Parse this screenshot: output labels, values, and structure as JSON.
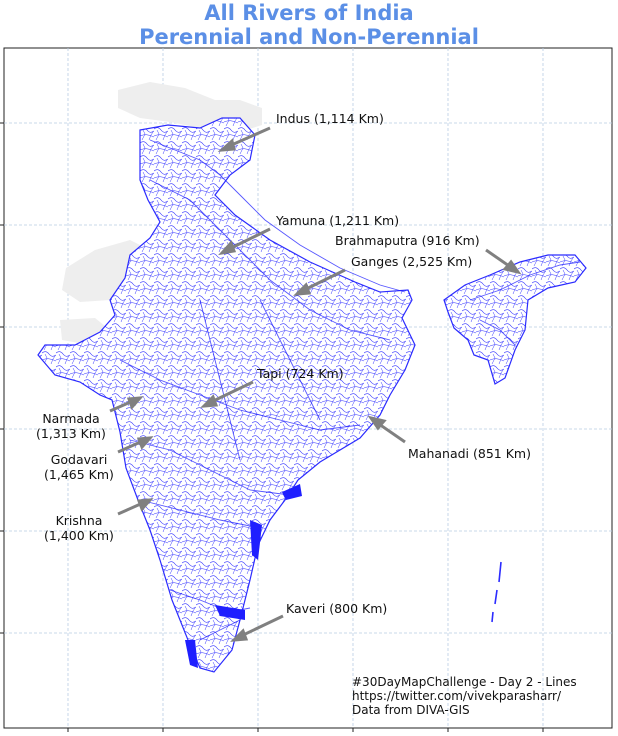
{
  "title_line1": "All Rivers of India",
  "title_line2": "Perennial and Non-Perennial",
  "colors": {
    "title": "#5b8fe6",
    "river": "#2b2bff",
    "land": "#ffffff",
    "neighbor": "#eeeeee",
    "arrow": "#808080",
    "grid": "#b9cde3"
  },
  "rivers": [
    {
      "id": "indus",
      "label": "Indus (1,114 Km)"
    },
    {
      "id": "yamuna",
      "label": "Yamuna (1,211 Km)"
    },
    {
      "id": "brahmaputra",
      "label": "Brahmaputra (916 Km)"
    },
    {
      "id": "ganges",
      "label": "Ganges (2,525 Km)"
    },
    {
      "id": "tapi",
      "label": "Tapi (724 Km)"
    },
    {
      "id": "narmada",
      "label_line1": "Narmada",
      "label_line2": "(1,313 Km)"
    },
    {
      "id": "godavari",
      "label_line1": "Godavari",
      "label_line2": "(1,465 Km)"
    },
    {
      "id": "mahanadi",
      "label": "Mahanadi (851 Km)"
    },
    {
      "id": "krishna",
      "label_line1": "Krishna",
      "label_line2": "(1,400 Km)"
    },
    {
      "id": "kaveri",
      "label": "Kaveri (800 Km)"
    }
  ],
  "credits": {
    "line1": "#30DayMapChallenge - Day 2 - Lines",
    "line2": "https://twitter.com/vivekparasharr/",
    "line3": "Data from DIVA-GIS"
  }
}
